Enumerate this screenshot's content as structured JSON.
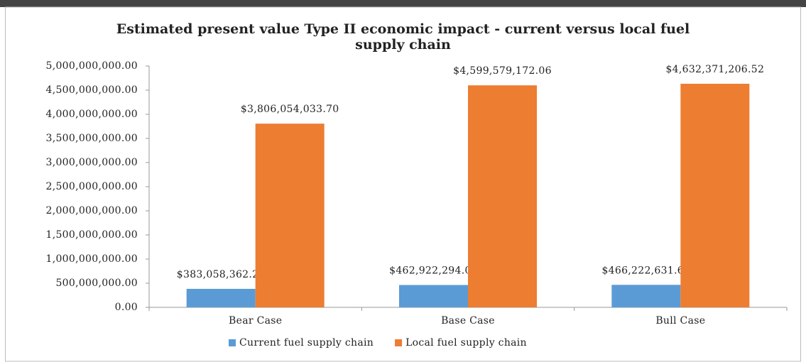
{
  "chart_data": {
    "type": "bar",
    "title": "Estimated present value Type II economic impact - current versus local fuel supply chain",
    "categories": [
      "Bear Case",
      "Base Case",
      "Bull Case"
    ],
    "series": [
      {
        "name": "Current fuel supply chain",
        "color": "#5b9bd5",
        "values": [
          383058362.25,
          462922294.09,
          466222631.63
        ],
        "value_labels": [
          "$383,058,362.25",
          "$462,922,294.09",
          "$466,222,631.63"
        ]
      },
      {
        "name": "Local fuel supply chain",
        "color": "#ed7d31",
        "values": [
          3806054033.7,
          4599579172.06,
          4632371206.52
        ],
        "value_labels": [
          "$3,806,054,033.70",
          "$4,599,579,172.06",
          "$4,632,371,206.52"
        ]
      }
    ],
    "ylim": [
      0,
      5000000000
    ],
    "yticks": [
      {
        "value": 0,
        "label": "0.00"
      },
      {
        "value": 500000000,
        "label": "500,000,000.00"
      },
      {
        "value": 1000000000,
        "label": "1,000,000,000.00"
      },
      {
        "value": 1500000000,
        "label": "1,500,000,000.00"
      },
      {
        "value": 2000000000,
        "label": "2,000,000,000.00"
      },
      {
        "value": 2500000000,
        "label": "2,500,000,000.00"
      },
      {
        "value": 3000000000,
        "label": "3,000,000,000.00"
      },
      {
        "value": 3500000000,
        "label": "3,500,000,000.00"
      },
      {
        "value": 4000000000,
        "label": "4,000,000,000.00"
      },
      {
        "value": 4500000000,
        "label": "4,500,000,000.00"
      },
      {
        "value": 5000000000,
        "label": "5,000,000,000.00"
      }
    ],
    "grid": false
  }
}
